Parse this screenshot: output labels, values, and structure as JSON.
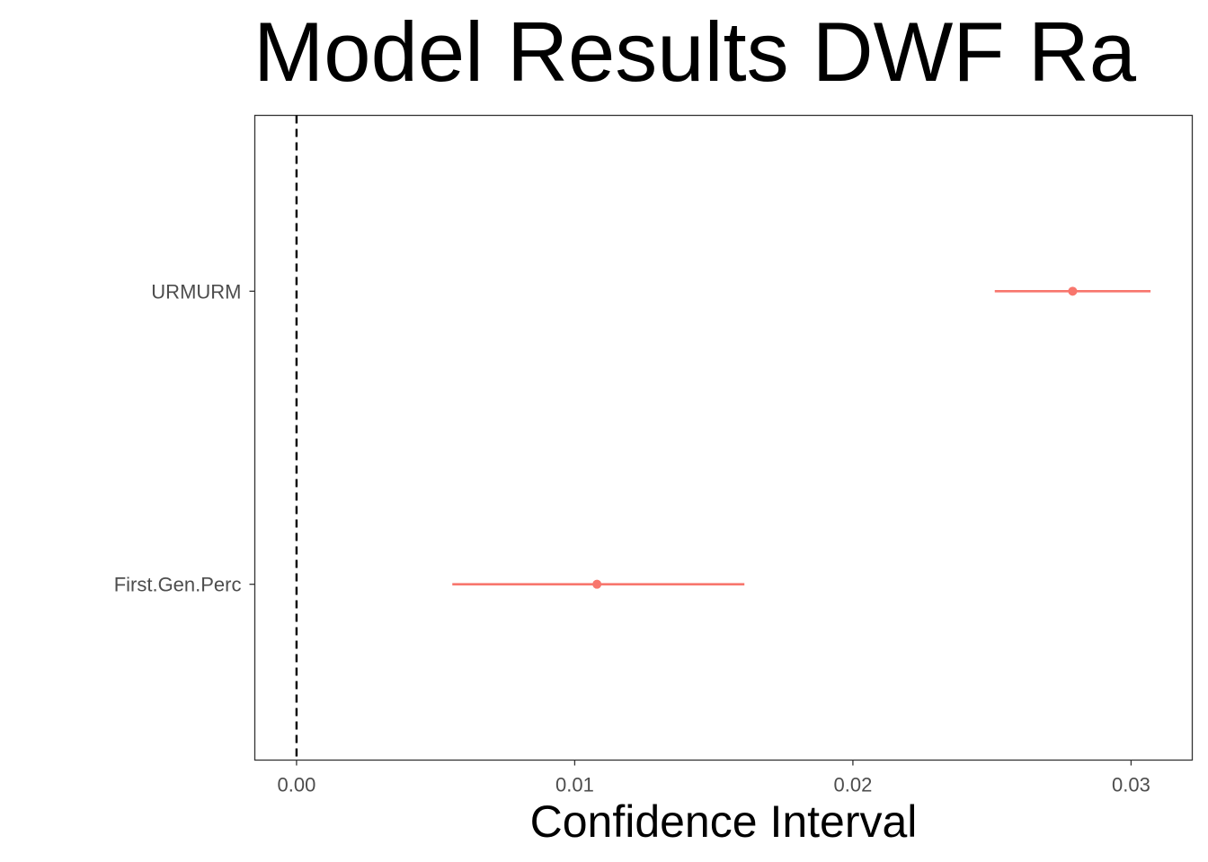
{
  "chart_data": {
    "type": "scatter",
    "subtype": "coefficient-plot-with-confidence-intervals",
    "title": "Model Results DWF Ra",
    "xlabel": "Confidence Interval",
    "ylabel": "",
    "xlim": [
      -0.0015,
      0.0322
    ],
    "x_ticks": [
      0.0,
      0.01,
      0.02,
      0.03
    ],
    "x_tick_labels": [
      "0.00",
      "0.01",
      "0.02",
      "0.03"
    ],
    "reference_line": {
      "x": 0.0,
      "style": "dashed",
      "color": "#000000"
    },
    "categories": [
      "URMURM",
      "First.Gen.Perc"
    ],
    "estimates": [
      {
        "term": "URMURM",
        "estimate": 0.0279,
        "conf_low": 0.0251,
        "conf_high": 0.0307
      },
      {
        "term": "First.Gen.Perc",
        "estimate": 0.0108,
        "conf_low": 0.0056,
        "conf_high": 0.0161
      }
    ],
    "point_color": "#f8766d",
    "grid": false,
    "legend": "none"
  }
}
